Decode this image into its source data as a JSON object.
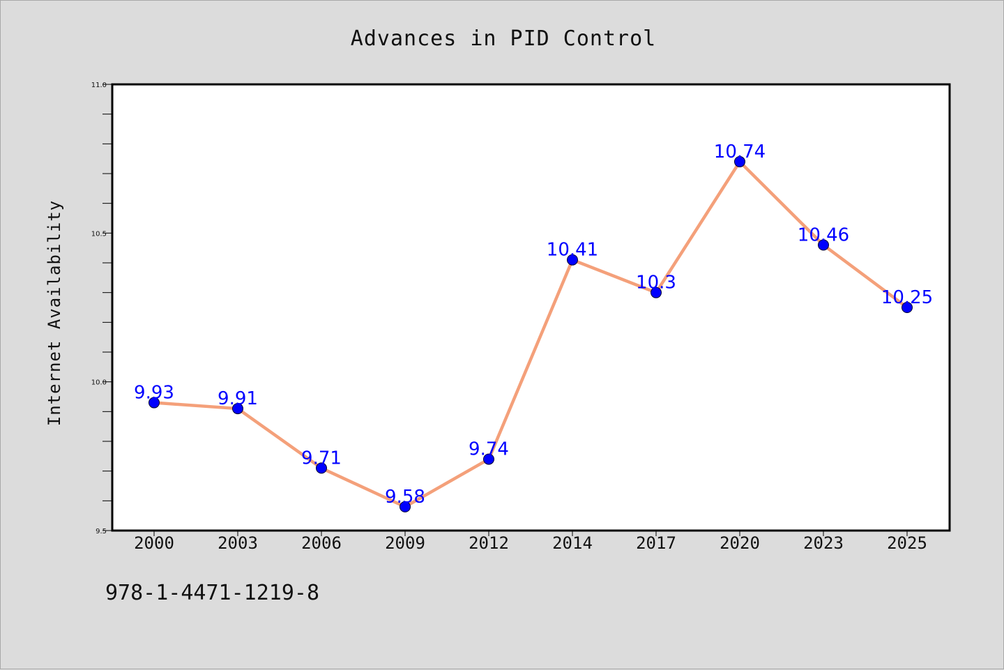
{
  "page": {
    "background": "#dcdcdc",
    "footer_code": "978-1-4471-1219-8"
  },
  "chart_data": {
    "type": "line",
    "title": "Advances in PID Control",
    "xlabel": "",
    "ylabel": "Internet Availability",
    "categories": [
      "2000",
      "2003",
      "2006",
      "2009",
      "2012",
      "2014",
      "2017",
      "2020",
      "2023",
      "2025"
    ],
    "series": [
      {
        "values": [
          9.93,
          9.91,
          9.71,
          9.58,
          9.74,
          10.41,
          10.3,
          10.74,
          10.46,
          10.25
        ],
        "labels": [
          "9.93",
          "9.91",
          "9.71",
          "9.58",
          "9.74",
          "10.41",
          "10.3",
          "10.74",
          "10.46",
          "10.25"
        ],
        "line_color": "#f4a07a",
        "marker_color": "#0000ff",
        "label_color": "#0000ff"
      }
    ],
    "ylim": [
      9.5,
      11.0
    ],
    "yticks": [
      "9.5",
      "10.0",
      "10.5",
      "11.0"
    ],
    "yticks_values": [
      9.5,
      10.0,
      10.5,
      11.0
    ],
    "grid": false,
    "legend": "none"
  }
}
